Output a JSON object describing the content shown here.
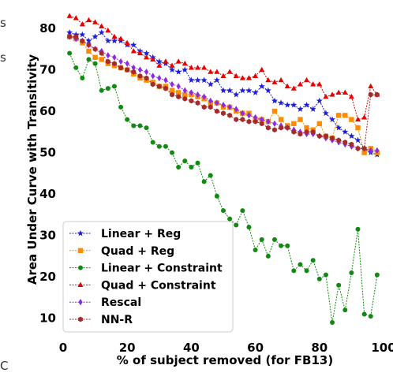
{
  "edge_glyphs": [
    "s",
    "s",
    "C"
  ],
  "chart_data": {
    "type": "line",
    "xlabel": "% of subject removed (for FB13)",
    "ylabel": "Area Under Curve with Transitivity",
    "xlim": [
      0,
      100
    ],
    "ylim": [
      5,
      84
    ],
    "xticks": [
      0,
      20,
      40,
      60,
      80,
      100
    ],
    "yticks": [
      10,
      20,
      30,
      40,
      50,
      60,
      70,
      80
    ],
    "grid": false,
    "legend_position": "lower-left",
    "series": [
      {
        "name": "Linear + Reg",
        "color": "#1f1fd6",
        "marker": "star",
        "x": [
          2,
          4,
          6,
          8,
          10,
          12,
          14,
          16,
          18,
          20,
          22,
          24,
          26,
          28,
          30,
          32,
          34,
          36,
          38,
          40,
          42,
          44,
          46,
          48,
          50,
          52,
          54,
          56,
          58,
          60,
          62,
          64,
          66,
          68,
          70,
          72,
          74,
          76,
          78,
          80,
          82,
          84,
          86,
          88,
          90,
          92,
          94,
          96,
          98
        ],
        "y": [
          79,
          78.5,
          78.5,
          77,
          78,
          79,
          77,
          77,
          77,
          76,
          76,
          74.5,
          74,
          73,
          72,
          71.5,
          70,
          69.5,
          70,
          67.5,
          67.5,
          67.5,
          66.5,
          67.5,
          65,
          65,
          64,
          65,
          65,
          64.5,
          66,
          65,
          62.5,
          62,
          61.5,
          61.5,
          60.5,
          61.5,
          60.5,
          62.5,
          59.5,
          58,
          56,
          55,
          54,
          53,
          51,
          50,
          49.5
        ]
      },
      {
        "name": "Quad + Reg",
        "color": "#ff8c00",
        "marker": "square",
        "x": [
          2,
          4,
          6,
          8,
          10,
          12,
          14,
          16,
          18,
          20,
          22,
          24,
          26,
          28,
          30,
          32,
          34,
          36,
          38,
          40,
          42,
          44,
          46,
          48,
          50,
          52,
          54,
          56,
          58,
          60,
          62,
          64,
          66,
          68,
          70,
          72,
          74,
          76,
          78,
          80,
          82,
          84,
          86,
          88,
          90,
          92,
          94,
          96,
          98
        ],
        "y": [
          78,
          77.5,
          76.5,
          74.5,
          73,
          72.5,
          71.5,
          71,
          70.5,
          70,
          69,
          68,
          67.5,
          67,
          66,
          66,
          65,
          64.5,
          64,
          64,
          63.5,
          63,
          62,
          62,
          61,
          61,
          60,
          59.5,
          59.5,
          58,
          58,
          57.5,
          60,
          58,
          56.5,
          57,
          58,
          56,
          55.5,
          57,
          54,
          53.5,
          59,
          59,
          58,
          56,
          50,
          51,
          50
        ]
      },
      {
        "name": "Linear + Constraint",
        "color": "#118a11",
        "marker": "circle",
        "x": [
          2,
          4,
          6,
          8,
          10,
          12,
          14,
          16,
          18,
          20,
          22,
          24,
          26,
          28,
          30,
          32,
          34,
          36,
          38,
          40,
          42,
          44,
          46,
          48,
          50,
          52,
          54,
          56,
          58,
          60,
          62,
          64,
          66,
          68,
          70,
          72,
          74,
          76,
          78,
          80,
          82,
          84,
          86,
          88,
          90,
          92,
          94,
          96,
          98
        ],
        "y": [
          74,
          70.5,
          68,
          72.5,
          71.5,
          65,
          65.5,
          66,
          61,
          58,
          56.5,
          56.5,
          56,
          52.5,
          51.5,
          51.5,
          50,
          46.5,
          48,
          46.5,
          47.5,
          43,
          44.5,
          39.5,
          36,
          34,
          32.5,
          36,
          32,
          26.5,
          29,
          25,
          29,
          27.5,
          27.5,
          21.5,
          23,
          21.5,
          24,
          19.5,
          20.5,
          9,
          18,
          12,
          21,
          31.5,
          11,
          10.5,
          20.5
        ]
      },
      {
        "name": "Quad + Constraint",
        "color": "#e60000",
        "marker": "triangle",
        "x": [
          2,
          4,
          6,
          8,
          10,
          12,
          14,
          16,
          18,
          20,
          22,
          24,
          26,
          28,
          30,
          32,
          34,
          36,
          38,
          40,
          42,
          44,
          46,
          48,
          50,
          52,
          54,
          56,
          58,
          60,
          62,
          64,
          66,
          68,
          70,
          72,
          74,
          76,
          78,
          80,
          82,
          84,
          86,
          88,
          90,
          92,
          94,
          96,
          98
        ],
        "y": [
          83,
          82.5,
          81,
          82,
          81.5,
          80.5,
          79.5,
          78,
          77.5,
          76.5,
          74.5,
          74,
          73,
          72.5,
          71,
          72,
          71,
          72,
          71.5,
          70.5,
          70.5,
          70.5,
          69.5,
          69.5,
          68.5,
          69.5,
          68.5,
          68,
          68,
          68.5,
          70,
          67.5,
          67,
          67.5,
          66,
          65.5,
          66.5,
          67.5,
          66.5,
          66.5,
          63.5,
          64,
          64.5,
          64.5,
          63.5,
          58,
          58.5,
          66,
          64
        ]
      },
      {
        "name": "Rescal",
        "color": "#8a2be2",
        "marker": "diamond",
        "x": [
          2,
          4,
          6,
          8,
          10,
          12,
          14,
          16,
          18,
          20,
          22,
          24,
          26,
          28,
          30,
          32,
          34,
          36,
          38,
          40,
          42,
          44,
          46,
          48,
          50,
          52,
          54,
          56,
          58,
          60,
          62,
          64,
          66,
          68,
          70,
          72,
          74,
          76,
          78,
          80,
          82,
          84,
          86,
          88,
          90,
          92,
          94,
          96,
          98
        ],
        "y": [
          78,
          77.5,
          77,
          76,
          75,
          74.5,
          73.5,
          73,
          72,
          71.5,
          70.5,
          70,
          69.5,
          68.5,
          68,
          67.5,
          66.5,
          66,
          65,
          64.5,
          64,
          63.5,
          62.5,
          62,
          61.5,
          61,
          60.5,
          59.5,
          59,
          58.5,
          58,
          57.5,
          57,
          56.5,
          56,
          55.5,
          55,
          54.5,
          54.5,
          54,
          53.5,
          53,
          52.5,
          52,
          51.5,
          51,
          51,
          50.5,
          50.5
        ]
      },
      {
        "name": "NN-R",
        "color": "#a52a2a",
        "marker": "hexagon",
        "x": [
          2,
          4,
          6,
          8,
          10,
          12,
          14,
          16,
          18,
          20,
          22,
          24,
          26,
          28,
          30,
          32,
          34,
          36,
          38,
          40,
          42,
          44,
          46,
          48,
          50,
          52,
          54,
          56,
          58,
          60,
          62,
          64,
          66,
          68,
          70,
          72,
          74,
          76,
          78,
          80,
          82,
          84,
          86,
          88,
          90,
          92,
          94,
          96,
          98
        ],
        "y": [
          78,
          78,
          77,
          76,
          75,
          74,
          72,
          71.5,
          70.5,
          70,
          69.5,
          68.5,
          68,
          66.5,
          66,
          65.5,
          64,
          63.5,
          63,
          62.5,
          62,
          61,
          61,
          60,
          59.5,
          59,
          58,
          58,
          57.5,
          57.5,
          57,
          56,
          55.5,
          56,
          56,
          55,
          54.5,
          55,
          55,
          54,
          54,
          53.5,
          53,
          52.5,
          52,
          51,
          51,
          64,
          64
        ]
      }
    ]
  }
}
